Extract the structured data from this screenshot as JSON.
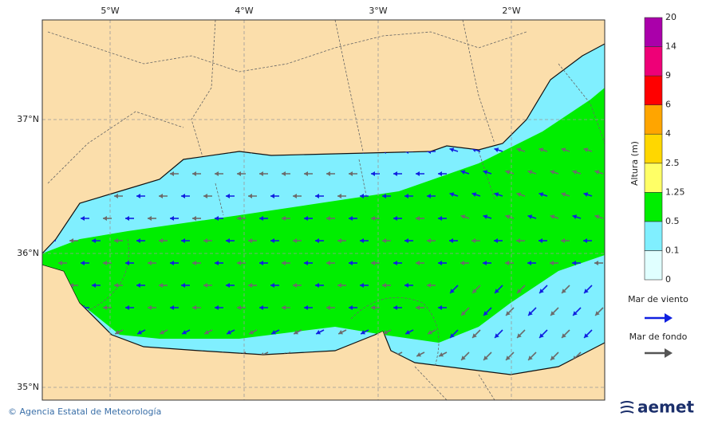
{
  "axes": {
    "x_labels": [
      "5°W",
      "4°W",
      "3°W",
      "2°W"
    ],
    "y_labels": [
      "37°N",
      "36°N",
      "35°N"
    ]
  },
  "colorbar": {
    "title": "Altura (m)",
    "levels": [
      0,
      0.1,
      0.5,
      1.25,
      2.5,
      4,
      6,
      9,
      14,
      20
    ]
  },
  "legend": [
    {
      "label": "Mar de viento"
    },
    {
      "label": "Mar de fondo"
    }
  ],
  "footer": {
    "credit": "© Agencia Estatal de Meteorología",
    "logo": "aemet"
  }
}
